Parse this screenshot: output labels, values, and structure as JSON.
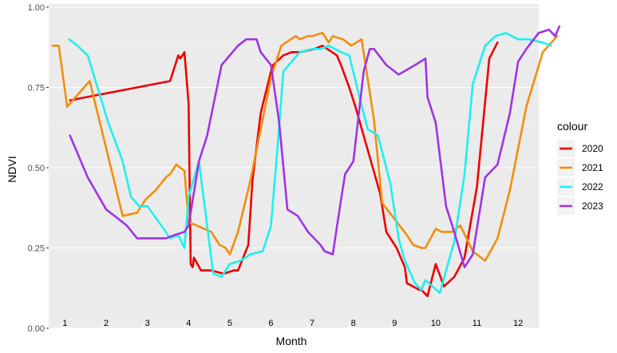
{
  "chart_data": {
    "type": "line",
    "title": "",
    "xlabel": "Month",
    "ylabel": "NDVI",
    "ylim": [
      0,
      1
    ],
    "xlim": [
      0,
      12.35
    ],
    "y_ticks": [
      "0.00",
      "0.25",
      "0.50",
      "0.75",
      "1.00"
    ],
    "y_tick_values": [
      0,
      0.25,
      0.5,
      0.75,
      1.0
    ],
    "month_labels": [
      "1",
      "2",
      "3",
      "4",
      "5",
      "6",
      "7",
      "8",
      "9",
      "10",
      "11",
      "12"
    ],
    "legend_title": "colour",
    "legend_position": "right",
    "grid": true,
    "series": [
      {
        "name": "2020",
        "color": "#ee0000",
        "x": [
          0.42,
          2.85,
          3.05,
          3.1,
          3.2,
          3.3,
          3.35,
          3.4,
          3.43,
          3.6,
          3.75,
          3.85,
          4.15,
          4.4,
          4.5,
          4.75,
          4.85,
          5.05,
          5.3,
          5.35,
          5.6,
          5.8,
          6.0,
          6.35,
          6.55,
          6.9,
          7.0,
          7.2,
          7.35,
          7.55,
          7.95,
          8.1,
          8.35,
          8.55,
          8.6,
          8.9,
          8.95,
          9.1,
          9.3,
          9.5,
          9.75,
          10.0,
          10.3,
          10.6,
          10.8
        ],
        "y": [
          0.71,
          0.77,
          0.85,
          0.84,
          0.86,
          0.7,
          0.2,
          0.19,
          0.22,
          0.18,
          0.18,
          0.18,
          0.17,
          0.18,
          0.18,
          0.26,
          0.46,
          0.67,
          0.8,
          0.82,
          0.85,
          0.86,
          0.86,
          0.87,
          0.88,
          0.85,
          0.82,
          0.75,
          0.69,
          0.6,
          0.42,
          0.3,
          0.25,
          0.19,
          0.14,
          0.12,
          0.12,
          0.1,
          0.2,
          0.13,
          0.16,
          0.22,
          0.44,
          0.84,
          0.89
        ]
      },
      {
        "name": "2021",
        "color": "#f28e0d",
        "x": [
          0.0,
          0.15,
          0.35,
          0.9,
          1.3,
          1.7,
          2.05,
          2.25,
          2.5,
          2.75,
          2.85,
          3.0,
          3.2,
          3.3,
          3.5,
          3.85,
          4.05,
          4.2,
          4.3,
          4.5,
          4.8,
          5.05,
          5.3,
          5.55,
          5.9,
          6.0,
          6.2,
          6.3,
          6.55,
          6.7,
          6.8,
          7.05,
          7.25,
          7.5,
          7.8,
          8.0,
          8.3,
          8.6,
          8.75,
          8.95,
          9.05,
          9.3,
          9.45,
          9.7,
          9.9,
          10.2,
          10.5,
          10.8,
          11.1,
          11.5,
          11.9,
          12.25
        ],
        "y": [
          0.88,
          0.88,
          0.69,
          0.77,
          0.56,
          0.35,
          0.36,
          0.4,
          0.43,
          0.47,
          0.48,
          0.51,
          0.49,
          0.33,
          0.32,
          0.3,
          0.26,
          0.25,
          0.23,
          0.3,
          0.46,
          0.62,
          0.78,
          0.88,
          0.91,
          0.9,
          0.91,
          0.91,
          0.92,
          0.89,
          0.91,
          0.9,
          0.88,
          0.9,
          0.65,
          0.39,
          0.34,
          0.29,
          0.26,
          0.25,
          0.25,
          0.31,
          0.3,
          0.3,
          0.32,
          0.24,
          0.21,
          0.28,
          0.43,
          0.69,
          0.86,
          0.91
        ]
      },
      {
        "name": "2022",
        "color": "#1ef0f0",
        "x": [
          0.4,
          0.6,
          0.85,
          1.35,
          1.7,
          1.9,
          2.1,
          2.3,
          2.75,
          2.85,
          3.05,
          3.2,
          3.3,
          3.55,
          3.9,
          4.1,
          4.3,
          4.55,
          4.8,
          5.1,
          5.3,
          5.45,
          5.6,
          6.0,
          6.3,
          6.5,
          6.7,
          7.0,
          7.2,
          7.45,
          7.65,
          7.9,
          8.2,
          8.4,
          8.55,
          8.8,
          8.95,
          9.05,
          9.4,
          9.75,
          10.0,
          10.2,
          10.5,
          10.75,
          11.0,
          11.3,
          11.55,
          11.9,
          12.1
        ],
        "y": [
          0.9,
          0.88,
          0.85,
          0.64,
          0.52,
          0.41,
          0.38,
          0.38,
          0.3,
          0.28,
          0.29,
          0.25,
          0.41,
          0.52,
          0.17,
          0.16,
          0.2,
          0.21,
          0.23,
          0.24,
          0.32,
          0.55,
          0.8,
          0.86,
          0.87,
          0.87,
          0.88,
          0.86,
          0.85,
          0.72,
          0.62,
          0.6,
          0.45,
          0.28,
          0.21,
          0.14,
          0.12,
          0.15,
          0.11,
          0.27,
          0.48,
          0.76,
          0.88,
          0.91,
          0.92,
          0.9,
          0.9,
          0.89,
          0.88
        ]
      },
      {
        "name": "2023",
        "color": "#a033e6",
        "x": [
          0.42,
          0.85,
          1.3,
          1.8,
          2.05,
          2.4,
          2.75,
          2.95,
          3.2,
          3.3,
          3.55,
          3.75,
          4.1,
          4.5,
          4.7,
          4.95,
          5.05,
          5.3,
          5.5,
          5.7,
          5.95,
          6.2,
          6.5,
          6.6,
          6.8,
          7.0,
          7.1,
          7.3,
          7.55,
          7.7,
          7.8,
          8.1,
          8.4,
          8.8,
          9.05,
          9.1,
          9.3,
          9.55,
          9.75,
          10.0,
          10.2,
          10.5,
          10.8,
          11.1,
          11.3,
          11.5,
          11.8,
          12.05,
          12.2,
          12.3
        ],
        "y": [
          0.6,
          0.47,
          0.37,
          0.32,
          0.28,
          0.28,
          0.28,
          0.29,
          0.3,
          0.32,
          0.52,
          0.6,
          0.82,
          0.88,
          0.9,
          0.9,
          0.86,
          0.82,
          0.64,
          0.37,
          0.35,
          0.3,
          0.26,
          0.24,
          0.23,
          0.4,
          0.48,
          0.52,
          0.8,
          0.87,
          0.87,
          0.82,
          0.79,
          0.82,
          0.84,
          0.72,
          0.64,
          0.38,
          0.3,
          0.19,
          0.23,
          0.47,
          0.51,
          0.67,
          0.83,
          0.87,
          0.92,
          0.93,
          0.91,
          0.94
        ]
      }
    ]
  }
}
